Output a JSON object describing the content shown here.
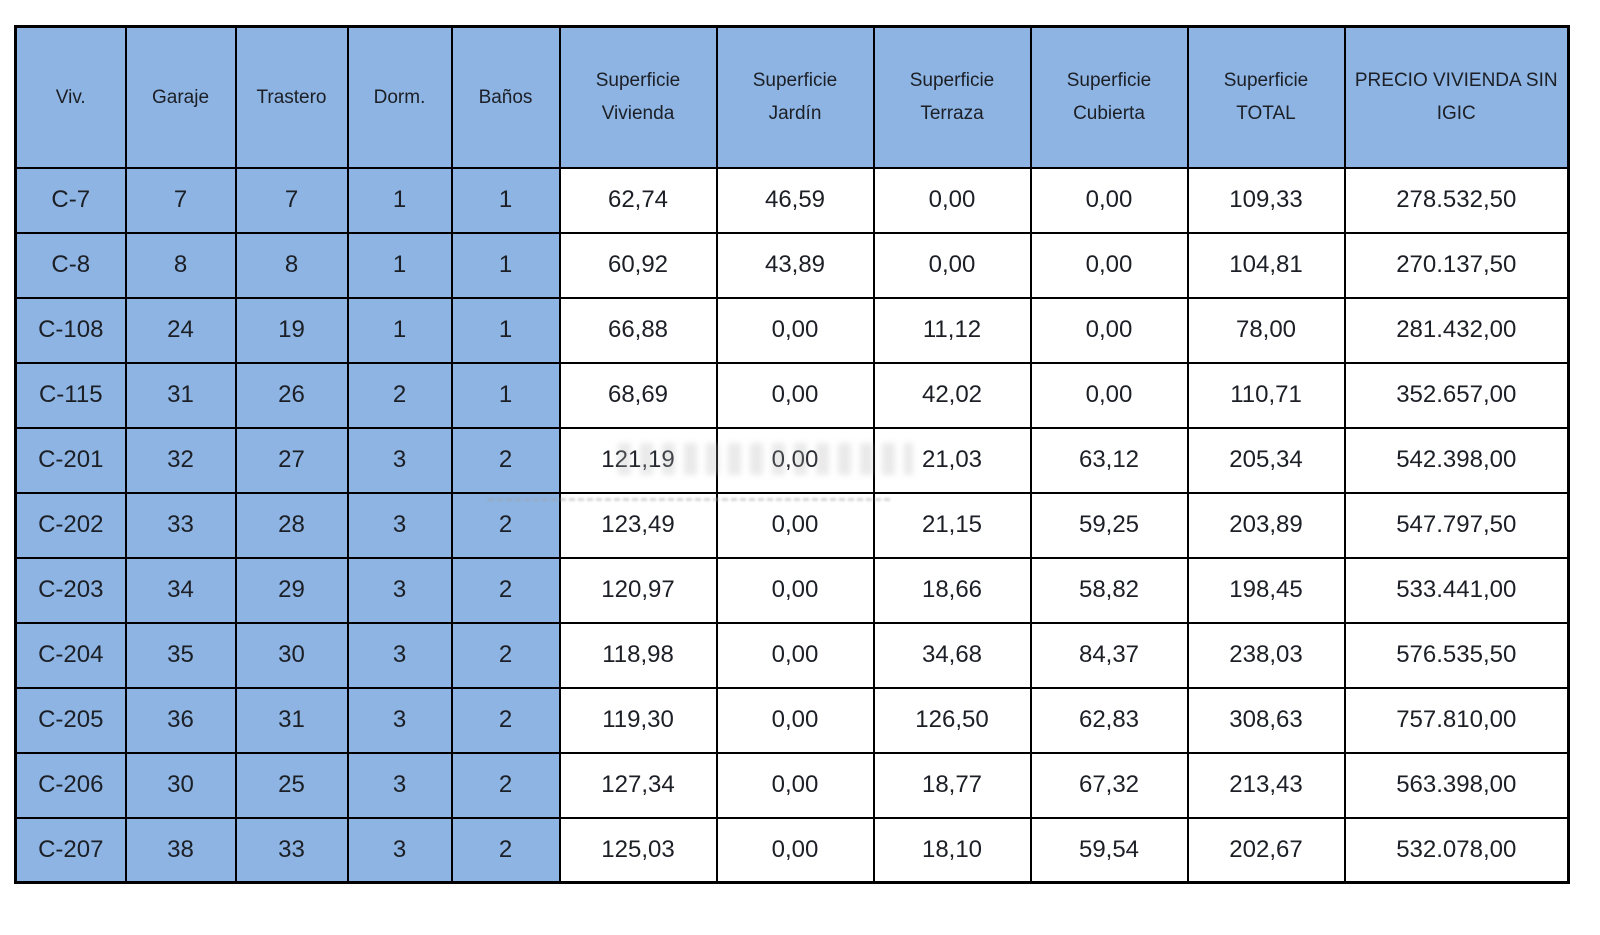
{
  "colors": {
    "page_bg": "#ffffff",
    "cell_blue": "#8db4e2",
    "cell_white": "#ffffff",
    "border": "#000000",
    "text": "#1c1f26"
  },
  "table": {
    "columns": [
      {
        "key": "viv",
        "label": "Viv.",
        "fill": "blue"
      },
      {
        "key": "garaje",
        "label": "Garaje",
        "fill": "blue"
      },
      {
        "key": "trastero",
        "label": "Trastero",
        "fill": "blue"
      },
      {
        "key": "dorm",
        "label": "Dorm.",
        "fill": "blue"
      },
      {
        "key": "banos",
        "label": "Baños",
        "fill": "blue"
      },
      {
        "key": "sup_vivienda",
        "label": "Superficie Vivienda",
        "fill": "white"
      },
      {
        "key": "sup_jardin",
        "label": "Superficie Jardín",
        "fill": "white"
      },
      {
        "key": "sup_terraza",
        "label": "Superficie Terraza",
        "fill": "white"
      },
      {
        "key": "sup_cubierta",
        "label": "Superficie Cubierta",
        "fill": "white"
      },
      {
        "key": "sup_total",
        "label": "Superficie TOTAL",
        "fill": "white"
      },
      {
        "key": "precio",
        "label": "PRECIO VIVIENDA SIN IGIC",
        "fill": "white"
      }
    ],
    "rows": [
      {
        "viv": "C-7",
        "garaje": "7",
        "trastero": "7",
        "dorm": "1",
        "banos": "1",
        "sup_vivienda": "62,74",
        "sup_jardin": "46,59",
        "sup_terraza": "0,00",
        "sup_cubierta": "0,00",
        "sup_total": "109,33",
        "precio": "278.532,50"
      },
      {
        "viv": "C-8",
        "garaje": "8",
        "trastero": "8",
        "dorm": "1",
        "banos": "1",
        "sup_vivienda": "60,92",
        "sup_jardin": "43,89",
        "sup_terraza": "0,00",
        "sup_cubierta": "0,00",
        "sup_total": "104,81",
        "precio": "270.137,50"
      },
      {
        "viv": "C-108",
        "garaje": "24",
        "trastero": "19",
        "dorm": "1",
        "banos": "1",
        "sup_vivienda": "66,88",
        "sup_jardin": "0,00",
        "sup_terraza": "11,12",
        "sup_cubierta": "0,00",
        "sup_total": "78,00",
        "precio": "281.432,00"
      },
      {
        "viv": "C-115",
        "garaje": "31",
        "trastero": "26",
        "dorm": "2",
        "banos": "1",
        "sup_vivienda": "68,69",
        "sup_jardin": "0,00",
        "sup_terraza": "42,02",
        "sup_cubierta": "0,00",
        "sup_total": "110,71",
        "precio": "352.657,00"
      },
      {
        "viv": "C-201",
        "garaje": "32",
        "trastero": "27",
        "dorm": "3",
        "banos": "2",
        "sup_vivienda": "121,19",
        "sup_jardin": "0,00",
        "sup_terraza": "21,03",
        "sup_cubierta": "63,12",
        "sup_total": "205,34",
        "precio": "542.398,00"
      },
      {
        "viv": "C-202",
        "garaje": "33",
        "trastero": "28",
        "dorm": "3",
        "banos": "2",
        "sup_vivienda": "123,49",
        "sup_jardin": "0,00",
        "sup_terraza": "21,15",
        "sup_cubierta": "59,25",
        "sup_total": "203,89",
        "precio": "547.797,50"
      },
      {
        "viv": "C-203",
        "garaje": "34",
        "trastero": "29",
        "dorm": "3",
        "banos": "2",
        "sup_vivienda": "120,97",
        "sup_jardin": "0,00",
        "sup_terraza": "18,66",
        "sup_cubierta": "58,82",
        "sup_total": "198,45",
        "precio": "533.441,00"
      },
      {
        "viv": "C-204",
        "garaje": "35",
        "trastero": "30",
        "dorm": "3",
        "banos": "2",
        "sup_vivienda": "118,98",
        "sup_jardin": "0,00",
        "sup_terraza": "34,68",
        "sup_cubierta": "84,37",
        "sup_total": "238,03",
        "precio": "576.535,50"
      },
      {
        "viv": "C-205",
        "garaje": "36",
        "trastero": "31",
        "dorm": "3",
        "banos": "2",
        "sup_vivienda": "119,30",
        "sup_jardin": "0,00",
        "sup_terraza": "126,50",
        "sup_cubierta": "62,83",
        "sup_total": "308,63",
        "precio": "757.810,00"
      },
      {
        "viv": "C-206",
        "garaje": "30",
        "trastero": "25",
        "dorm": "3",
        "banos": "2",
        "sup_vivienda": "127,34",
        "sup_jardin": "0,00",
        "sup_terraza": "18,77",
        "sup_cubierta": "67,32",
        "sup_total": "213,43",
        "precio": "563.398,00"
      },
      {
        "viv": "C-207",
        "garaje": "38",
        "trastero": "33",
        "dorm": "3",
        "banos": "2",
        "sup_vivienda": "125,03",
        "sup_jardin": "0,00",
        "sup_terraza": "18,10",
        "sup_cubierta": "59,54",
        "sup_total": "202,67",
        "precio": "532.078,00"
      }
    ]
  }
}
